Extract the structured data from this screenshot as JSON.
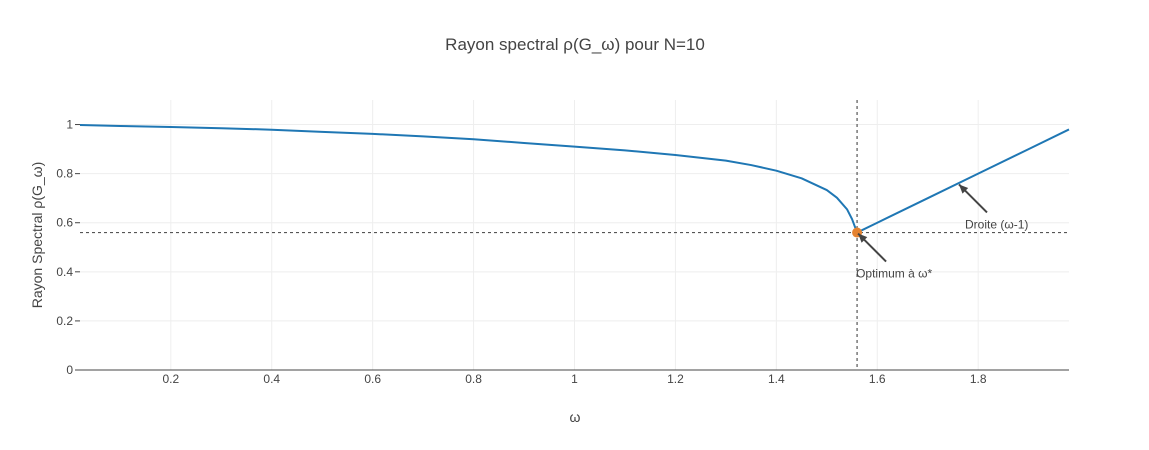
{
  "chart_data": {
    "type": "line",
    "title": "Rayon spectral ρ(G_ω) pour N=10",
    "xlabel": "ω",
    "ylabel": "Rayon Spectral ρ(G_ω)",
    "xlim": [
      0.02,
      1.98
    ],
    "ylim": [
      0,
      1.1
    ],
    "grid": true,
    "x_ticks": [
      0.2,
      0.4,
      0.6,
      0.8,
      1,
      1.2,
      1.4,
      1.6,
      1.8
    ],
    "x_tick_labels": [
      "0.2",
      "0.4",
      "0.6",
      "0.8",
      "1",
      "1.2",
      "1.4",
      "1.6",
      "1.8"
    ],
    "y_ticks": [
      0,
      0.2,
      0.4,
      0.6,
      0.8,
      1
    ],
    "y_tick_labels": [
      "0",
      "0.2",
      "0.4",
      "0.6",
      "0.8",
      "1"
    ],
    "series": [
      {
        "color": "#1f77b4",
        "x": [
          0.02,
          0.1,
          0.2,
          0.3,
          0.4,
          0.5,
          0.6,
          0.7,
          0.8,
          0.9,
          1.0,
          1.1,
          1.2,
          1.3,
          1.35,
          1.4,
          1.45,
          1.5,
          1.52,
          1.54,
          1.55,
          1.56,
          1.6,
          1.7,
          1.8,
          1.9,
          1.98
        ],
        "y": [
          0.998,
          0.994,
          0.99,
          0.985,
          0.979,
          0.97,
          0.962,
          0.952,
          0.94,
          0.925,
          0.91,
          0.895,
          0.876,
          0.853,
          0.835,
          0.812,
          0.781,
          0.733,
          0.702,
          0.655,
          0.615,
          0.56,
          0.6,
          0.7,
          0.8,
          0.9,
          0.98
        ]
      }
    ],
    "optimum": {
      "x": 1.56,
      "y": 0.56,
      "color": "#e5822f"
    },
    "reference_lines": {
      "vertical_x": 1.56,
      "horizontal_y": 0.56
    },
    "annotations": [
      {
        "text": "Optimum à ω*",
        "point": [
          1.56,
          0.56
        ]
      },
      {
        "text": "Droite (ω-1)",
        "point": [
          1.76,
          0.76
        ]
      }
    ]
  }
}
